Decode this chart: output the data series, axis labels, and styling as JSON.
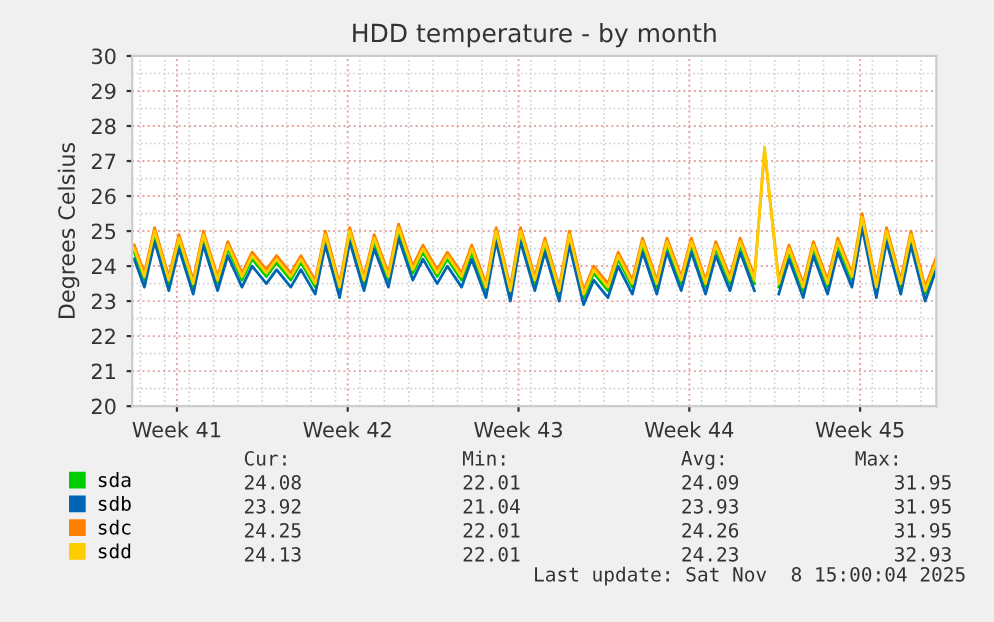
{
  "chart_data": {
    "type": "line",
    "title": "HDD temperature - by month",
    "ylabel": "Degrees Celsius",
    "x": [
      "2025-10-06T18:00",
      "2025-10-07T04:00",
      "2025-10-07T14:00",
      "2025-10-08T04:00",
      "2025-10-08T14:00",
      "2025-10-09T04:00",
      "2025-10-09T14:00",
      "2025-10-10T04:00",
      "2025-10-10T14:00",
      "2025-10-11T04:00",
      "2025-10-11T14:00",
      "2025-10-12T04:00",
      "2025-10-12T14:00",
      "2025-10-13T04:00",
      "2025-10-13T14:00",
      "2025-10-14T04:00",
      "2025-10-14T14:00",
      "2025-10-15T04:00",
      "2025-10-15T14:00",
      "2025-10-16T04:00",
      "2025-10-16T14:00",
      "2025-10-17T04:00",
      "2025-10-17T14:00",
      "2025-10-18T04:00",
      "2025-10-18T14:00",
      "2025-10-19T04:00",
      "2025-10-19T14:00",
      "2025-10-20T04:00",
      "2025-10-20T14:00",
      "2025-10-21T04:00",
      "2025-10-21T14:00",
      "2025-10-22T04:00",
      "2025-10-22T14:00",
      "2025-10-23T04:00",
      "2025-10-23T14:00",
      "2025-10-24T04:00",
      "2025-10-24T14:00",
      "2025-10-25T04:00",
      "2025-10-25T14:00",
      "2025-10-26T04:00",
      "2025-10-26T14:00",
      "2025-10-27T04:00",
      "2025-10-27T14:00",
      "2025-10-28T04:00",
      "2025-10-28T14:00",
      "2025-10-29T04:00",
      "2025-10-29T14:00",
      "2025-10-30T04:00",
      "2025-10-30T14:00",
      "2025-10-31T04:00",
      "2025-10-31T14:00",
      "2025-11-01T04:00",
      "2025-11-01T14:00",
      "2025-11-02T04:00",
      "2025-11-02T14:00",
      "2025-11-03T04:00",
      "2025-11-03T14:00",
      "2025-11-04T04:00",
      "2025-11-04T14:00",
      "2025-11-05T04:00",
      "2025-11-05T14:00",
      "2025-11-06T04:00",
      "2025-11-06T14:00",
      "2025-11-07T04:00",
      "2025-11-07T14:00",
      "2025-11-08T04:00",
      "2025-11-08T15:00"
    ],
    "series": [
      {
        "name": "sda",
        "color": "#00cc00",
        "values": [
          24.4,
          23.6,
          24.9,
          23.5,
          24.7,
          23.4,
          24.8,
          23.5,
          24.5,
          23.6,
          24.2,
          23.7,
          24.1,
          23.6,
          24.1,
          23.4,
          24.8,
          23.3,
          24.9,
          23.5,
          24.7,
          23.6,
          25.0,
          23.8,
          24.4,
          23.7,
          24.2,
          23.6,
          24.4,
          23.3,
          24.9,
          23.2,
          24.9,
          23.5,
          24.6,
          23.2,
          24.8,
          23.1,
          23.8,
          23.3,
          24.2,
          23.4,
          24.6,
          23.4,
          24.6,
          23.5,
          24.6,
          23.4,
          24.5,
          23.5,
          24.6,
          23.5,
          null,
          23.4,
          24.4,
          23.3,
          24.5,
          23.4,
          24.6,
          23.6,
          25.3,
          23.3,
          24.9,
          23.4,
          24.8,
          23.2,
          24.08
        ]
      },
      {
        "name": "sdb",
        "color": "#0066b3",
        "values": [
          24.2,
          23.4,
          24.7,
          23.3,
          24.5,
          23.2,
          24.6,
          23.3,
          24.3,
          23.4,
          24.0,
          23.5,
          23.9,
          23.4,
          23.9,
          23.2,
          24.6,
          23.1,
          24.7,
          23.3,
          24.5,
          23.4,
          24.8,
          23.6,
          24.2,
          23.5,
          24.0,
          23.4,
          24.2,
          23.1,
          24.7,
          23.0,
          24.7,
          23.3,
          24.4,
          23.0,
          24.6,
          22.9,
          23.6,
          23.1,
          24.0,
          23.2,
          24.4,
          23.2,
          24.4,
          23.3,
          24.4,
          23.2,
          24.3,
          23.3,
          24.4,
          23.3,
          null,
          23.2,
          24.2,
          23.1,
          24.3,
          23.2,
          24.4,
          23.4,
          25.1,
          23.1,
          24.7,
          23.2,
          24.6,
          23.0,
          23.92
        ]
      },
      {
        "name": "sdc",
        "color": "#ff8000",
        "values": [
          24.6,
          23.8,
          25.1,
          23.7,
          24.9,
          23.6,
          25.0,
          23.7,
          24.7,
          23.8,
          24.4,
          23.9,
          24.3,
          23.8,
          24.3,
          23.6,
          25.0,
          23.5,
          25.1,
          23.7,
          24.9,
          23.8,
          25.2,
          24.0,
          24.6,
          23.9,
          24.4,
          23.8,
          24.6,
          23.5,
          25.1,
          23.4,
          25.1,
          23.7,
          24.8,
          23.4,
          25.0,
          23.3,
          24.0,
          23.5,
          24.4,
          23.6,
          24.8,
          23.6,
          24.8,
          23.7,
          24.8,
          23.6,
          24.7,
          23.7,
          24.8,
          23.7,
          27.3,
          23.6,
          24.6,
          23.5,
          24.7,
          23.6,
          24.8,
          23.8,
          25.5,
          23.5,
          25.1,
          23.6,
          25.0,
          23.4,
          24.25
        ]
      },
      {
        "name": "sdd",
        "color": "#ffcc00",
        "values": [
          24.5,
          23.7,
          25.0,
          23.6,
          24.8,
          23.5,
          24.9,
          23.6,
          24.6,
          23.7,
          24.3,
          23.8,
          24.2,
          23.7,
          24.2,
          23.5,
          24.9,
          23.4,
          25.0,
          23.6,
          24.8,
          23.7,
          25.1,
          23.9,
          24.5,
          23.8,
          24.3,
          23.7,
          24.5,
          23.4,
          25.0,
          23.3,
          25.0,
          23.6,
          24.7,
          23.3,
          24.9,
          23.2,
          23.9,
          23.4,
          24.3,
          23.5,
          24.7,
          23.5,
          24.7,
          23.6,
          24.7,
          23.5,
          24.6,
          23.6,
          24.7,
          23.6,
          27.4,
          23.5,
          24.5,
          23.4,
          24.6,
          23.5,
          24.7,
          23.7,
          25.4,
          23.4,
          25.0,
          23.5,
          24.9,
          23.3,
          24.13
        ]
      }
    ],
    "xlim": [
      "2025-10-06T16:00",
      "2025-11-08T15:00"
    ],
    "xticks": [
      {
        "value": "2025-10-08T12:00",
        "label": "Week 41"
      },
      {
        "value": "2025-10-15T12:00",
        "label": "Week 42"
      },
      {
        "value": "2025-10-22T12:00",
        "label": "Week 43"
      },
      {
        "value": "2025-10-29T12:00",
        "label": "Week 44"
      },
      {
        "value": "2025-11-05T12:00",
        "label": "Week 45"
      }
    ],
    "ylim": [
      20,
      30
    ],
    "yticks": [
      20,
      21,
      22,
      23,
      24,
      25,
      26,
      27,
      28,
      29,
      30
    ],
    "grid": true,
    "legend": "bottom",
    "marker": "none",
    "line_style": "solid",
    "annotations": [
      "Cur:",
      "Min:",
      "Avg:",
      "Max:",
      "24.08",
      "22.01",
      "24.09",
      "31.95",
      "23.92",
      "21.04",
      "23.93",
      "31.95",
      "24.25",
      "22.01",
      "24.26",
      "31.95",
      "24.13",
      "22.01",
      "24.23",
      "32.93",
      "Last update: Sat Nov  8 15:00:04 2025"
    ]
  }
}
